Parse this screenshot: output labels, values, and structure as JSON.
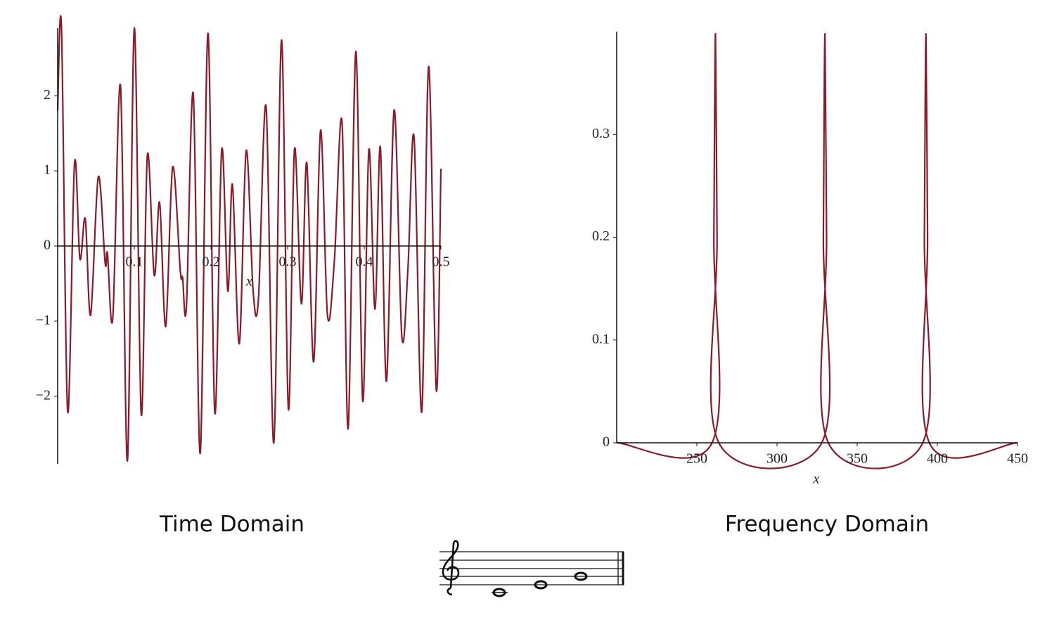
{
  "chart_data": [
    {
      "type": "line",
      "xlabel": "x",
      "x": [
        0,
        0.005,
        0.013,
        0.022,
        0.029,
        0.036,
        0.043,
        0.053,
        0.062,
        0.065,
        0.072,
        0.082,
        0.091,
        0.1,
        0.109,
        0.117,
        0.126,
        0.133,
        0.141,
        0.15,
        0.16,
        0.163,
        0.168,
        0.177,
        0.186,
        0.196,
        0.205,
        0.214,
        0.222,
        0.228,
        0.237,
        0.246,
        0.255,
        0.262,
        0.272,
        0.282,
        0.292,
        0.301,
        0.309,
        0.318,
        0.325,
        0.334,
        0.343,
        0.352,
        0.361,
        0.371,
        0.379,
        0.389,
        0.398,
        0.406,
        0.414,
        0.421,
        0.429,
        0.439,
        0.449,
        0.457,
        0.465,
        0.475,
        0.484,
        0.494,
        0.5
      ],
      "series": [
        {
          "color": "#8b1a2b",
          "values": [
            1.8,
            2.9,
            -2.2,
            1.1,
            -0.17,
            0.36,
            -0.92,
            0.92,
            -0.23,
            -0.1,
            -0.95,
            2.13,
            -2.86,
            2.9,
            -2.24,
            1.2,
            -0.39,
            0.58,
            -1.07,
            1.05,
            -0.33,
            -0.42,
            -0.81,
            2.02,
            -2.76,
            2.83,
            -2.22,
            1.28,
            -0.6,
            0.82,
            -1.3,
            1.27,
            -0.6,
            -0.7,
            1.85,
            -2.62,
            2.74,
            -2.17,
            1.29,
            -0.77,
            1.11,
            -1.54,
            1.54,
            -0.92,
            -0.2,
            1.65,
            -2.43,
            2.59,
            -2.06,
            1.28,
            -0.84,
            1.32,
            -1.8,
            1.81,
            -1.2,
            -0.3,
            1.45,
            -2.21,
            2.39,
            -1.92,
            1.03
          ]
        }
      ],
      "xlim": [
        0,
        0.5
      ],
      "ylim": [
        -2.9,
        2.9
      ],
      "xticks": [
        0.1,
        0.2,
        0.3,
        0.4,
        0.5
      ],
      "yticks": [
        {
          "value": -2,
          "label": "−2"
        },
        {
          "value": -1,
          "label": "−1"
        },
        0,
        1,
        2
      ]
    },
    {
      "type": "line",
      "xlabel": "x",
      "x": [
        200,
        259.5,
        260.6,
        261.6,
        262.6,
        263.7,
        327.9,
        328.9,
        329.9,
        330.9,
        332,
        390.9,
        391.9,
        392.9,
        393.9,
        395,
        450
      ],
      "series": [
        {
          "color": "#8b1a2b",
          "values": [
            0,
            0,
            0.2,
            0.398,
            0.2,
            0,
            0,
            0.2,
            0.398,
            0.2,
            0,
            0,
            0.2,
            0.398,
            0.2,
            0,
            0
          ]
        }
      ],
      "xlim": [
        200,
        450
      ],
      "ylim": [
        0,
        0.4
      ],
      "xticks": [
        250,
        300,
        350,
        400,
        450
      ],
      "yticks": [
        0,
        0.1,
        0.2,
        0.3
      ]
    }
  ],
  "captions": [
    "Time Domain",
    "Frequency Domain"
  ]
}
